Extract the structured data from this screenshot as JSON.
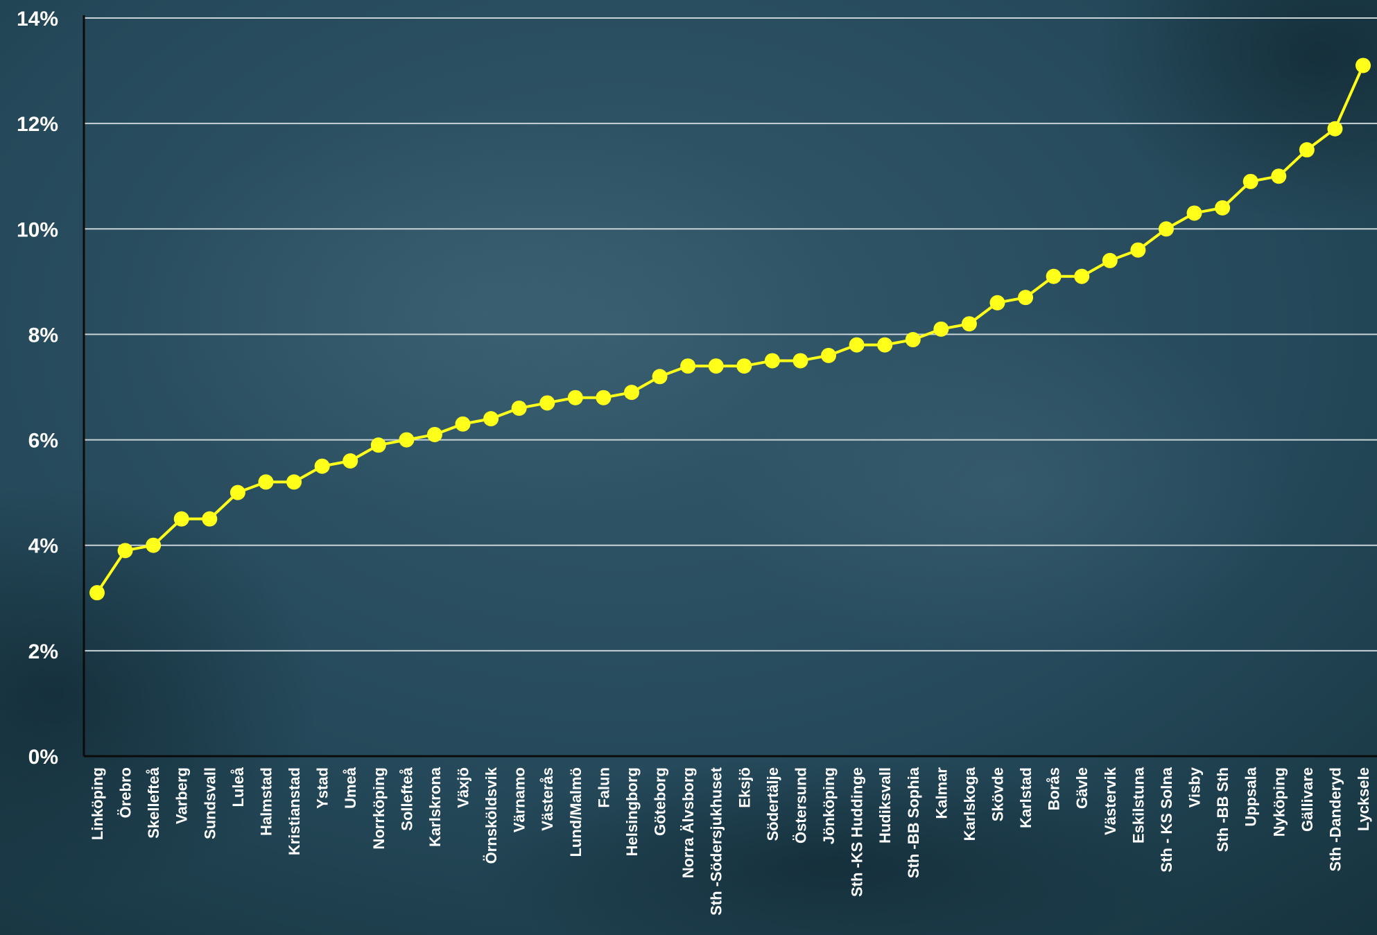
{
  "colors": {
    "background_dark": "#14303a",
    "background_mid": "#25495a",
    "background_light": "#33596b",
    "gridline": "#c9d3d8",
    "axis": "#0b0b0b",
    "series": "#ffff1a",
    "label_text": "#ffffff"
  },
  "chart_data": {
    "type": "line",
    "title": "",
    "xlabel": "",
    "ylabel": "",
    "ylim": [
      0,
      14
    ],
    "y_ticks": [
      "0%",
      "2%",
      "4%",
      "6%",
      "8%",
      "10%",
      "12%",
      "14%"
    ],
    "y_tick_values": [
      0,
      2,
      4,
      6,
      8,
      10,
      12,
      14
    ],
    "y_unit": "%",
    "grid": true,
    "legend": "none",
    "markers": "circle",
    "categories": [
      "Linköping",
      "Örebro",
      "Skellefteå",
      "Varberg",
      "Sundsvall",
      "Luleå",
      "Halmstad",
      "Kristianstad",
      "Ystad",
      "Umeå",
      "Norrköping",
      "Sollefteå",
      "Karlskrona",
      "Växjö",
      "Örnsköldsvik",
      "Värnamo",
      "Västerås",
      "Lund/Malmö",
      "Falun",
      "Helsingborg",
      "Göteborg",
      "Norra Älvsborg",
      "Sth -Södersjukhuset",
      "Eksjö",
      "Södertälje",
      "Östersund",
      "Jönköping",
      "Sth -KS Huddinge",
      "Hudiksvall",
      "Sth -BB Sophia",
      "Kalmar",
      "Karlskoga",
      "Skövde",
      "Karlstad",
      "Borås",
      "Gävle",
      "Västervik",
      "Eskilstuna",
      "Sth - KS Solna",
      "Visby",
      "Sth -BB Sth",
      "Uppsala",
      "Nyköping",
      "Gällivare",
      "Sth -Danderyd",
      "Lycksele"
    ],
    "series": [
      {
        "values": [
          3.1,
          3.9,
          4.0,
          4.5,
          4.5,
          5.0,
          5.2,
          5.2,
          5.5,
          5.6,
          5.9,
          6.0,
          6.1,
          6.3,
          6.4,
          6.6,
          6.7,
          6.8,
          6.8,
          6.9,
          7.2,
          7.4,
          7.4,
          7.4,
          7.5,
          7.5,
          7.6,
          7.8,
          7.8,
          7.9,
          8.1,
          8.2,
          8.6,
          8.7,
          9.1,
          9.1,
          9.4,
          9.6,
          10.0,
          10.3,
          10.4,
          10.9,
          11.0,
          11.5,
          11.9,
          13.1
        ]
      }
    ]
  }
}
